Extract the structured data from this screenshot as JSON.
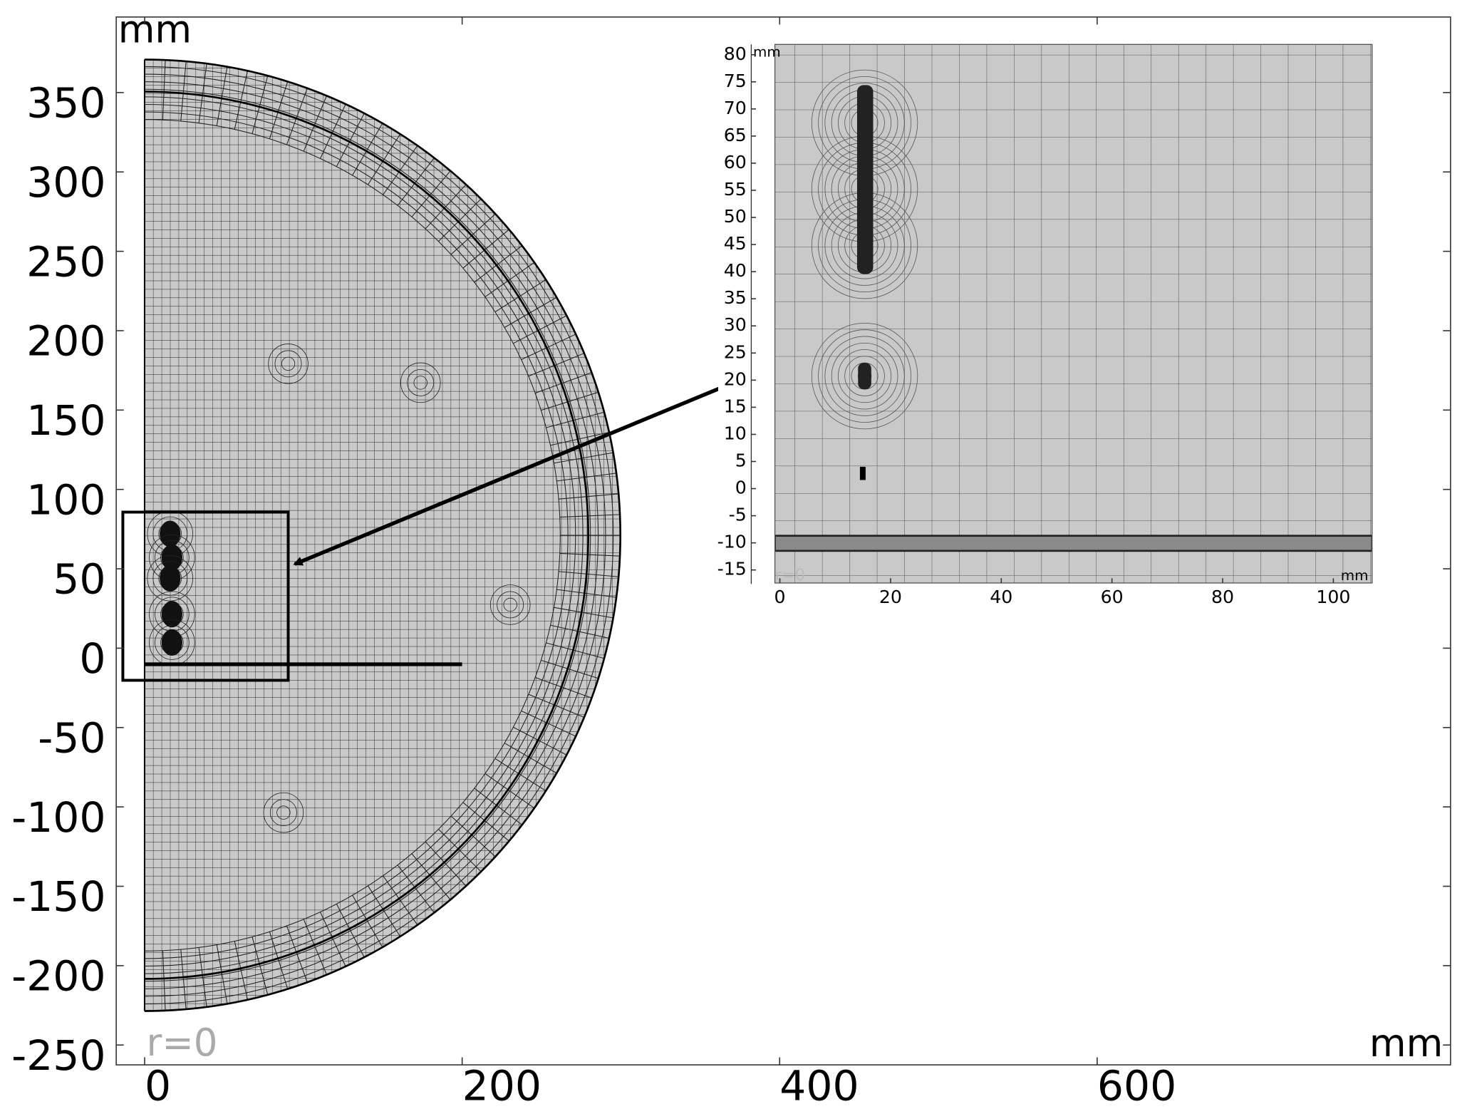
{
  "chart_data": [
    {
      "type": "mesh",
      "xlabel": "mm",
      "ylabel": "mm",
      "annotation": "r=0",
      "xlim": [
        -17.9,
        822.6
      ],
      "ylim": [
        -262.5,
        397.6
      ],
      "xticks": [
        0,
        200,
        400,
        600
      ],
      "yticks": [
        -250,
        -200,
        -150,
        -100,
        -50,
        0,
        50,
        100,
        150,
        200,
        250,
        300,
        350
      ]
    },
    {
      "type": "mesh",
      "xlabel": "mm",
      "ylabel": "mm",
      "annotation": "r=0",
      "xlim": [
        -0.9,
        107
      ],
      "ylim": [
        -17.4,
        81.9
      ],
      "xticks": [
        0,
        20,
        40,
        60,
        80,
        100
      ],
      "yticks": [
        -15,
        -10,
        -5,
        0,
        5,
        10,
        15,
        20,
        25,
        30,
        35,
        40,
        45,
        50,
        55,
        60,
        65,
        70,
        75,
        80
      ]
    }
  ]
}
